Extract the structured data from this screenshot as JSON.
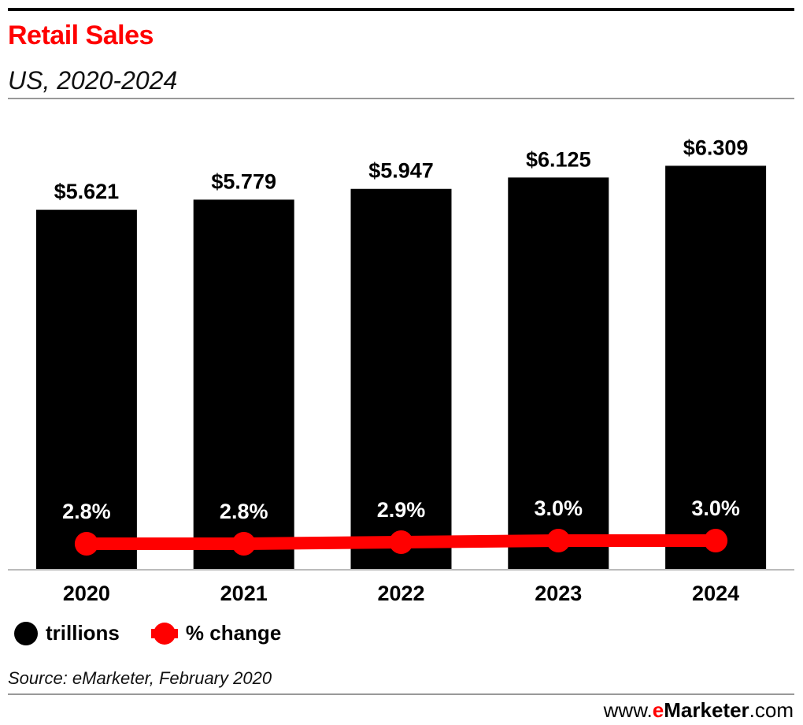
{
  "header": {
    "title": "Retail Sales",
    "subtitle": "US, 2020-2024"
  },
  "colors": {
    "title": "#ff0000",
    "bars": "#000000",
    "line": "#ff0000",
    "value_label": "#000000",
    "pct_label": "#ffffff"
  },
  "chart_data": {
    "type": "bar",
    "categories": [
      "2020",
      "2021",
      "2022",
      "2023",
      "2024"
    ],
    "series": [
      {
        "name": "trillions",
        "type": "bar",
        "values": [
          5.621,
          5.779,
          5.947,
          6.125,
          6.309
        ],
        "labels": [
          "$5.621",
          "$5.779",
          "$5.947",
          "$6.125",
          "$6.309"
        ]
      },
      {
        "name": "% change",
        "type": "line",
        "values": [
          2.8,
          2.8,
          2.9,
          3.0,
          3.0
        ],
        "labels": [
          "2.8%",
          "2.8%",
          "2.9%",
          "3.0%",
          "3.0%"
        ]
      }
    ],
    "ylim": [
      0,
      7.3
    ],
    "grid": false,
    "legend_position": "bottom-left"
  },
  "legend": {
    "items": [
      "trillions",
      "% change"
    ]
  },
  "footer": {
    "source": "Source: eMarketer, February 2020",
    "brand_prefix": "www.",
    "brand_accent": "e",
    "brand_rest": "Marketer",
    "brand_suffix": ".com"
  }
}
